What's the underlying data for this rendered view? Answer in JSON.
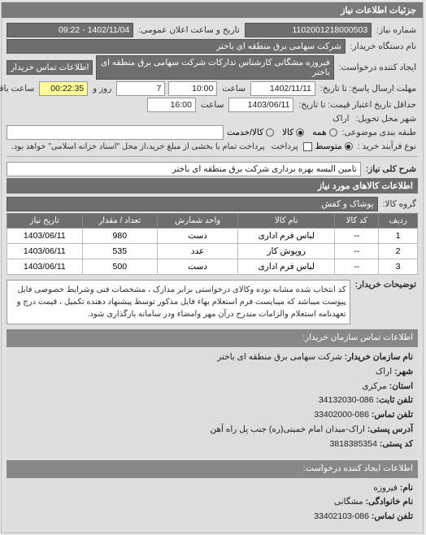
{
  "header": {
    "title": "جزئیات اطلاعات نیاز"
  },
  "form": {
    "request_no_label": "شماره نیاز:",
    "request_no": "1102001218000503",
    "pub_datetime_label": "تاریخ و ساعت اعلان عمومی:",
    "pub_datetime": "1402/11/04 - 09:22",
    "org_label": "نام دستگاه خریدار:",
    "org": "شرکت سهامی برق منطقه ای باختر",
    "creator_unit_label": "ایجاد کننده درخواست:",
    "creator_unit": "فیروزه مشگانی کارشناس تدارکات شرکت سهامی برق منطقه ای باختر",
    "contact_btn": "اطلاعات تماس خریدار",
    "deadline_to_label": "مهلت ارسال پاسخ: تا تاریخ:",
    "deadline_date": "1402/11/11",
    "deadline_time_label": "ساعت",
    "deadline_time": "10:00",
    "days_label": "روز و",
    "days": "7",
    "remain_label": "ساعت باقی مانده",
    "remain": "00:22:35",
    "credit_to_label": "حداقل تاریخ اعتبار قیمت: تا تاریخ:",
    "credit_date": "1403/06/11",
    "credit_time_label": "ساعت",
    "credit_time": "16:00",
    "city_label": "شهر محل تحویل:",
    "city": "اراک",
    "category_label": "طبقه بندی موضوعی:",
    "radios": {
      "all": "همه",
      "goods": "کالا",
      "service": "کالا/خدمت"
    },
    "dropdown_placeholder": "",
    "process_label": "نوع فرآیند خرید :",
    "proc_avg": "متوسط",
    "proc_note": "پرداخت تمام یا بخشی از مبلغ خرید،از محل \"اسناد خزانه اسلامی\" خواهد بود.",
    "pay_check_label": "پرداخت"
  },
  "need": {
    "title_label": "شرح کلی نیاز:",
    "title": "تامین البسه بهره برداری شرکت برق منطقه ای باختر"
  },
  "goods": {
    "section": "اطلاعات کالاهای مورد نیاز",
    "group_label": "گروه کالا:",
    "group": "پوشاک و کفش",
    "columns": {
      "row": "ردیف",
      "code": "کد کالا",
      "name": "نام کالا",
      "unit": "واحد شمارش",
      "qty": "تعداد / مقدار",
      "date": "تاریخ نیاز"
    },
    "rows": [
      {
        "row": "1",
        "code": "--",
        "name": "لباس فرم اداری",
        "unit": "دست",
        "qty": "980",
        "date": "1403/06/11"
      },
      {
        "row": "2",
        "code": "--",
        "name": "روپوش کار",
        "unit": "عدد",
        "qty": "535",
        "date": "1403/06/11"
      },
      {
        "row": "3",
        "code": "--",
        "name": "لباس فرم اداری",
        "unit": "دست",
        "qty": "500",
        "date": "1403/06/11"
      }
    ]
  },
  "notes": {
    "label": "توضیحات خریدار:",
    "text": "کد انتخاب شده مشابه بوده وکالای درخواستی برابر مدارک ، مشخصات فنی وشرایط خصوصی فایل پیوست میباشد که میبایست فرم استعلام بهاء فایل مذکور توسط پیشنهاد دهنده تکمیل ، قیمت درج و تعهدنامه استعلام والزامات مندرج درآن مهر وامضاء ودر سامانه بارگذاری شود."
  },
  "buyer_contact": {
    "header": "اطلاعات تماس سازمان خریدار:",
    "org_label": "نام سازمان خریدار:",
    "org": "شرکت سهامی برق منطقه ای باختر",
    "city_label": "شهر:",
    "city": "اراک",
    "province_label": "استان:",
    "province": "مرکزی",
    "phone_label": "تلفن ثابت:",
    "phone": "086-34132030",
    "fax_label": "تلفن تماس:",
    "fax": "086-33402000",
    "address_label": "آدرس پستی:",
    "address": "اراک-میدان امام خمینی(ره) جنب پل راه آهن",
    "postcode_label": "کد پستی:",
    "postcode": "3818385354"
  },
  "requester_contact": {
    "header": "اطلاعات ایجاد کننده درخواست:",
    "name_label": "نام:",
    "name": "فیروزه",
    "lname_label": "نام خانوادگی:",
    "lname": "مشگانی",
    "phone_label": "تلفن تماس:",
    "phone": "086-33402103"
  },
  "colors": {
    "header_bg": "#7a7a7a",
    "field_dark": "#6e6e6e",
    "panel_bg": "#e0e0e0",
    "remain_bg": "#ffff99"
  }
}
